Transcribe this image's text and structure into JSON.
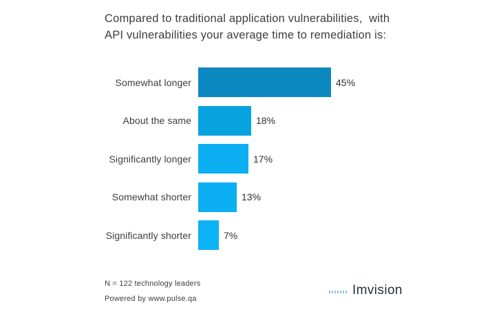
{
  "header": {
    "title_line1": "Compared to traditional application vulnerabilities,  with",
    "title_line2": "API vulnerabilities your average time to remediation is:"
  },
  "chart_data": {
    "type": "bar",
    "orientation": "horizontal",
    "title": "Compared to traditional application vulnerabilities, with API vulnerabilities your average time to remediation is:",
    "categories": [
      "Somewhat longer",
      "About the same",
      "Significantly longer",
      "Somewhat shorter",
      "Significantly shorter"
    ],
    "values": [
      45,
      18,
      17,
      13,
      7
    ],
    "value_labels": [
      "45%",
      "18%",
      "17%",
      "13%",
      "7%"
    ],
    "value_suffix": "%",
    "xlim": [
      0,
      50
    ],
    "grid": false,
    "legend": false,
    "bar_colors": [
      "#0d89c1",
      "#07a3e0",
      "#0cb0f2",
      "#0cb0f2",
      "#0db2f4"
    ],
    "label_color": "#3d3d3d",
    "value_color": "#2f2f2f"
  },
  "footer": {
    "sample_note": "N = 122 technology leaders",
    "powered_by": "Powered by www.pulse.qa"
  },
  "logo": {
    "wordmark": "Imvision",
    "mark_color": "#8cc2de"
  }
}
